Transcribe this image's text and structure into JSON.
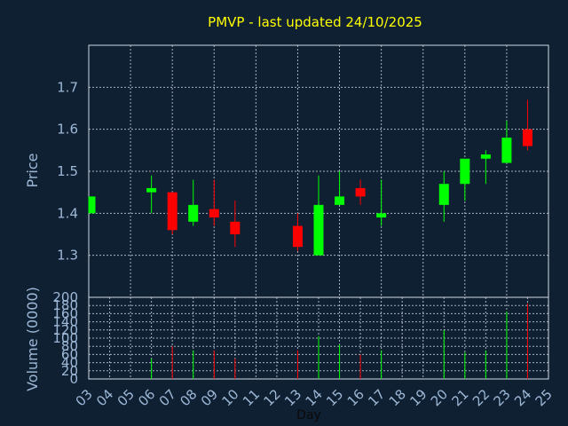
{
  "title": "PMVP - last updated 24/10/2025",
  "colors": {
    "background": "#0f2033",
    "up": "#00ff00",
    "down": "#ff0000",
    "title": "#ffff00",
    "axis_text": "#9db8d6",
    "grid": "#d9e2ec"
  },
  "chart_data": [
    {
      "type": "candlestick",
      "ylabel": "Price",
      "ylim": [
        1.2,
        1.8
      ],
      "yticks": [
        "1.3",
        "1.4",
        "1.5",
        "1.6",
        "1.7"
      ],
      "grid": true,
      "days": [
        "03",
        "04",
        "05",
        "06",
        "07",
        "08",
        "09",
        "10",
        "11",
        "12",
        "13",
        "14",
        "15",
        "16",
        "17",
        "18",
        "19",
        "20",
        "21",
        "22",
        "23",
        "24",
        "25"
      ],
      "candles": [
        {
          "day": "03",
          "open": 1.4,
          "high": 1.44,
          "low": 1.4,
          "close": 1.44
        },
        {
          "day": "06",
          "open": 1.45,
          "high": 1.49,
          "low": 1.4,
          "close": 1.46
        },
        {
          "day": "07",
          "open": 1.45,
          "high": 1.45,
          "low": 1.35,
          "close": 1.36
        },
        {
          "day": "08",
          "open": 1.38,
          "high": 1.48,
          "low": 1.37,
          "close": 1.42
        },
        {
          "day": "09",
          "open": 1.41,
          "high": 1.48,
          "low": 1.37,
          "close": 1.39
        },
        {
          "day": "10",
          "open": 1.38,
          "high": 1.43,
          "low": 1.32,
          "close": 1.35
        },
        {
          "day": "13",
          "open": 1.37,
          "high": 1.4,
          "low": 1.31,
          "close": 1.32
        },
        {
          "day": "14",
          "open": 1.3,
          "high": 1.49,
          "low": 1.3,
          "close": 1.42
        },
        {
          "day": "15",
          "open": 1.42,
          "high": 1.5,
          "low": 1.42,
          "close": 1.44
        },
        {
          "day": "16",
          "open": 1.46,
          "high": 1.48,
          "low": 1.42,
          "close": 1.44
        },
        {
          "day": "17",
          "open": 1.39,
          "high": 1.48,
          "low": 1.37,
          "close": 1.4
        },
        {
          "day": "20",
          "open": 1.42,
          "high": 1.5,
          "low": 1.38,
          "close": 1.47
        },
        {
          "day": "21",
          "open": 1.47,
          "high": 1.53,
          "low": 1.43,
          "close": 1.53
        },
        {
          "day": "22",
          "open": 1.53,
          "high": 1.55,
          "low": 1.47,
          "close": 1.54
        },
        {
          "day": "23",
          "open": 1.52,
          "high": 1.62,
          "low": 1.52,
          "close": 1.58
        },
        {
          "day": "24",
          "open": 1.6,
          "high": 1.67,
          "low": 1.55,
          "close": 1.56
        }
      ]
    },
    {
      "type": "bar",
      "ylabel": "Volume (0000)",
      "xlabel": "Day",
      "ylim": [
        0,
        200
      ],
      "yticks": [
        "0",
        "20",
        "40",
        "60",
        "80",
        "100",
        "120",
        "140",
        "160",
        "180",
        "200"
      ],
      "grid": true,
      "volumes": [
        {
          "day": "06",
          "value": 50,
          "up": true
        },
        {
          "day": "07",
          "value": 80,
          "up": false
        },
        {
          "day": "08",
          "value": 70,
          "up": true
        },
        {
          "day": "09",
          "value": 70,
          "up": false
        },
        {
          "day": "10",
          "value": 50,
          "up": false
        },
        {
          "day": "13",
          "value": 70,
          "up": false
        },
        {
          "day": "14",
          "value": 105,
          "up": true
        },
        {
          "day": "15",
          "value": 85,
          "up": true
        },
        {
          "day": "16",
          "value": 60,
          "up": false
        },
        {
          "day": "17",
          "value": 70,
          "up": true
        },
        {
          "day": "20",
          "value": 120,
          "up": true
        },
        {
          "day": "21",
          "value": 65,
          "up": true
        },
        {
          "day": "22",
          "value": 70,
          "up": true
        },
        {
          "day": "23",
          "value": 165,
          "up": true
        },
        {
          "day": "24",
          "value": 185,
          "up": false
        }
      ]
    }
  ]
}
